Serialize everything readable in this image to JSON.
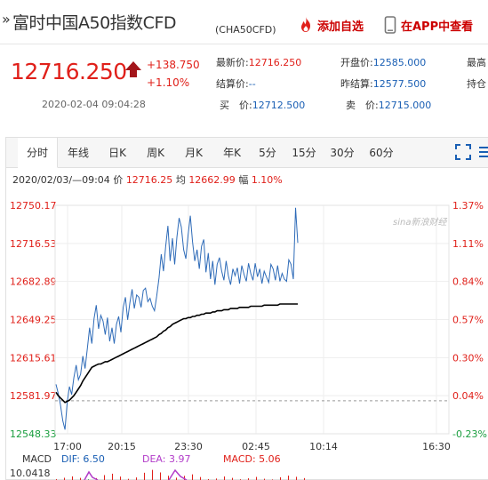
{
  "header": {
    "title_mark": "»",
    "title": "富时中国A50指数CFD",
    "code": "(CHA50CFD)",
    "add_favorite": "添加自选",
    "in_app": "在APP中查看"
  },
  "quote": {
    "price": "12716.250",
    "change": "+138.750",
    "change_pct": "+1.10%",
    "time": "2020-02-04 09:04:28",
    "fields": {
      "latest_label": "最新价:",
      "latest_value": "12716.250",
      "open_label": "开盘价:",
      "open_value": "12585.000",
      "col3_row1_label": "最高",
      "settle_label": "结算价:",
      "settle_value": "--",
      "prev_settle_label": "昨结算:",
      "prev_settle_value": "12577.500",
      "col3_row2_label": "持仓",
      "bid_label": "买　价:",
      "bid_value": "12712.500",
      "ask_label": "卖　价:",
      "ask_value": "12715.000"
    }
  },
  "tabs": [
    "分时",
    "年线",
    "日K",
    "周K",
    "月K",
    "年K",
    "5分",
    "15分",
    "30分",
    "60分"
  ],
  "active_tab": "分时",
  "info_line": {
    "datetime": "2020/02/03/—09:04",
    "price_label": "价",
    "price": "12716.25",
    "avg_label": "均",
    "avg": "12662.99",
    "range_label": "幅",
    "range": "1.10%"
  },
  "watermark": "sina新浪财经",
  "macd": {
    "label": "MACD",
    "dif": "DIF: 6.50",
    "dea": "DEA: 3.97",
    "macd": "MACD: 5.06",
    "scale_top": "10.0418"
  },
  "chart_data": {
    "type": "line",
    "y_ticks_left": [
      "12750.17",
      "12716.53",
      "12682.89",
      "12649.25",
      "12615.61",
      "12581.97",
      "12548.33"
    ],
    "y_ticks_right": [
      "1.37%",
      "1.11%",
      "0.84%",
      "0.57%",
      "0.30%",
      "0.04%",
      "-0.23%"
    ],
    "x_ticks": [
      "17:00",
      "20:15",
      "23:30",
      "02:45",
      "10:14",
      "16:30"
    ],
    "ylim": [
      12548.33,
      12750.17
    ],
    "reference": 12577.5,
    "colors": {
      "price": "#2e6bb8",
      "average": "#000000",
      "up": "#e0201a",
      "down": "#1a9e3f"
    },
    "series": [
      {
        "values": [
          12592,
          12584,
          12574,
          12560,
          12552,
          12576,
          12590,
          12583,
          12598,
          12609,
          12596,
          12601,
          12617,
          12606,
          12624,
          12642,
          12628,
          12650,
          12662,
          12641,
          12653,
          12648,
          12636,
          12651,
          12630,
          12642,
          12628,
          12645,
          12652,
          12638,
          12660,
          12669,
          12649,
          12664,
          12676,
          12659,
          12671,
          12669,
          12660,
          12675,
          12677,
          12665,
          12668,
          12661,
          12657,
          12670,
          12686,
          12707,
          12692,
          12714,
          12732,
          12701,
          12721,
          12698,
          12722,
          12739,
          12731,
          12711,
          12703,
          12724,
          12741,
          12718,
          12701,
          12711,
          12694,
          12714,
          12720,
          12691,
          12708,
          12685,
          12701,
          12680,
          12698,
          12704,
          12692,
          12684,
          12701,
          12688,
          12680,
          12694,
          12688,
          12695,
          12681,
          12697,
          12689,
          12683,
          12699,
          12690,
          12684,
          12699,
          12687,
          12694,
          12681,
          12692,
          12687,
          12682,
          12698,
          12694,
          12684,
          12697,
          12683,
          12690,
          12685,
          12683,
          12702,
          12698,
          12685,
          12748,
          12717
        ]
      },
      {
        "values": [
          12585,
          12582,
          12580,
          12578,
          12576,
          12577,
          12578,
          12580,
          12582,
          12585,
          12588,
          12591,
          12595,
          12598,
          12601,
          12604,
          12607,
          12608,
          12609,
          12610,
          12610,
          12611,
          12612,
          12612,
          12613,
          12614,
          12615,
          12616,
          12617,
          12618,
          12619,
          12620,
          12621,
          12622,
          12623,
          12624,
          12625,
          12626,
          12627,
          12628,
          12629,
          12630,
          12631,
          12632,
          12633,
          12634,
          12636,
          12637,
          12639,
          12640,
          12642,
          12643,
          12645,
          12646,
          12647,
          12648,
          12649,
          12650,
          12650,
          12651,
          12651,
          12652,
          12652,
          12653,
          12653,
          12654,
          12654,
          12655,
          12655,
          12655,
          12656,
          12656,
          12657,
          12657,
          12657,
          12658,
          12658,
          12658,
          12659,
          12659,
          12659,
          12659,
          12660,
          12660,
          12660,
          12660,
          12660,
          12661,
          12661,
          12661,
          12661,
          12661,
          12661,
          12662,
          12662,
          12662,
          12662,
          12662,
          12662,
          12662,
          12663,
          12663,
          12663,
          12663,
          12663,
          12663,
          12663,
          12663,
          12663
        ]
      }
    ],
    "macd_values": [
      0.8,
      2.1,
      3.4,
      2.0,
      -0.6,
      1.8,
      4.6,
      5.9,
      3.2,
      1.1,
      2.4,
      6.8,
      9.5,
      7.1,
      4.0,
      2.2,
      3.9,
      5.3,
      2.8,
      0.9,
      1.4,
      3.3,
      2.0,
      0.7,
      1.6,
      2.9,
      1.2,
      0.5,
      2.6,
      4.1,
      3.0,
      1.8
    ]
  }
}
